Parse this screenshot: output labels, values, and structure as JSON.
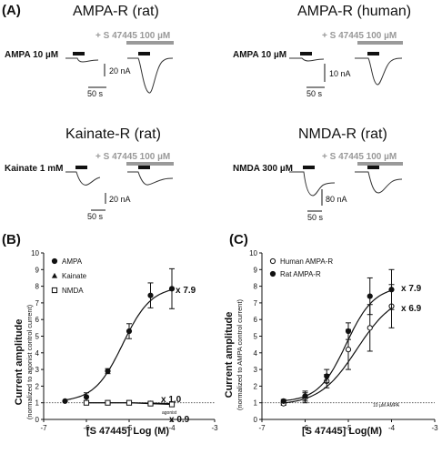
{
  "panel_a": {
    "label": "(A)",
    "blocks": [
      {
        "title": "AMPA-R (rat)",
        "agonist": "AMPA 10 µM",
        "modulator": "+ S 47445 100 µM",
        "scale_i": "20 nA",
        "scale_t": "50 s"
      },
      {
        "title": "AMPA-R (human)",
        "agonist": "AMPA 10 µM",
        "modulator": "+ S 47445 100 µM",
        "scale_i": "10 nA",
        "scale_t": "50 s"
      },
      {
        "title": "Kainate-R (rat)",
        "agonist": "Kainate 1 mM",
        "modulator": "+ S 47445 100 µM",
        "scale_i": "20 nA",
        "scale_t": "50 s"
      },
      {
        "title": "NMDA-R (rat)",
        "agonist": "NMDA 300 µM",
        "modulator": "+ S 47445 100 µM",
        "scale_i": "80 nA",
        "scale_t": "50 s"
      }
    ]
  },
  "panel_b": {
    "label": "(B)",
    "ylabel": "Current amplitude",
    "ylabel_sub": "(normalized to agonist control current)",
    "xlabel": "[S 47445] Log (M)",
    "baseline_label": "agonist",
    "annotations": [
      "x 7.9",
      "x 1.0",
      "x 0.9"
    ]
  },
  "panel_c": {
    "label": "(C)",
    "ylabel": "Current amplitude",
    "ylabel_sub": "(normalized to AMPA control current)",
    "xlabel": "[S 47445]  Log(M)",
    "baseline_label": "10 µM AMPA",
    "annotations": [
      "x 7.9",
      "x 6.9"
    ]
  },
  "chart_data": [
    {
      "type": "scatter",
      "panel": "B",
      "xlim": [
        -7,
        -3
      ],
      "ylim": [
        0,
        10
      ],
      "xticks": [
        -7,
        -6,
        -5,
        -4,
        -3
      ],
      "yticks": [
        0,
        1,
        2,
        3,
        4,
        5,
        6,
        7,
        8,
        9,
        10
      ],
      "baseline": 1,
      "legend_placement": "top-left",
      "series": [
        {
          "name": "AMPA",
          "marker": "filled-circle",
          "fit": "sigmoid",
          "x": [
            -6.5,
            -6,
            -5.5,
            -5,
            -4.5,
            -4
          ],
          "y": [
            1.1,
            1.35,
            2.9,
            5.3,
            7.45,
            7.85
          ],
          "err": [
            0.05,
            0.25,
            0.15,
            0.45,
            0.75,
            1.2
          ]
        },
        {
          "name": "Kainate",
          "marker": "filled-triangle",
          "fit": "line",
          "x": [
            -6,
            -5.5,
            -5,
            -4.5,
            -4
          ],
          "y": [
            1.0,
            1.0,
            1.0,
            0.98,
            0.95
          ],
          "err": [
            0.05,
            0.05,
            0.05,
            0.05,
            0.05
          ]
        },
        {
          "name": "NMDA",
          "marker": "open-square",
          "fit": "line",
          "x": [
            -6,
            -5.5,
            -5,
            -4.5,
            -4
          ],
          "y": [
            1.0,
            1.0,
            1.0,
            0.95,
            0.9
          ],
          "err": [
            0.05,
            0.05,
            0.05,
            0.05,
            0.05
          ]
        }
      ]
    },
    {
      "type": "scatter",
      "panel": "C",
      "xlim": [
        -7,
        -3
      ],
      "ylim": [
        0,
        10
      ],
      "xticks": [
        -7,
        -6,
        -5,
        -4,
        -3
      ],
      "yticks": [
        0,
        1,
        2,
        3,
        4,
        5,
        6,
        7,
        8,
        9,
        10
      ],
      "baseline": 1,
      "legend_placement": "top-left",
      "series": [
        {
          "name": "Human AMPA-R",
          "marker": "open-circle",
          "fit": "sigmoid",
          "x": [
            -6.5,
            -6,
            -5.5,
            -5,
            -4.5,
            -4
          ],
          "y": [
            0.95,
            1.3,
            2.3,
            4.2,
            5.5,
            6.8
          ],
          "err": [
            0.1,
            0.3,
            0.4,
            1.2,
            1.4,
            1.3
          ]
        },
        {
          "name": "Rat AMPA-R",
          "marker": "filled-circle",
          "fit": "sigmoid",
          "x": [
            -6.5,
            -6,
            -5.5,
            -5,
            -4.5,
            -4
          ],
          "y": [
            1.1,
            1.4,
            2.6,
            5.3,
            7.4,
            7.8
          ],
          "err": [
            0.1,
            0.3,
            0.4,
            0.5,
            1.1,
            1.2
          ]
        }
      ]
    }
  ]
}
